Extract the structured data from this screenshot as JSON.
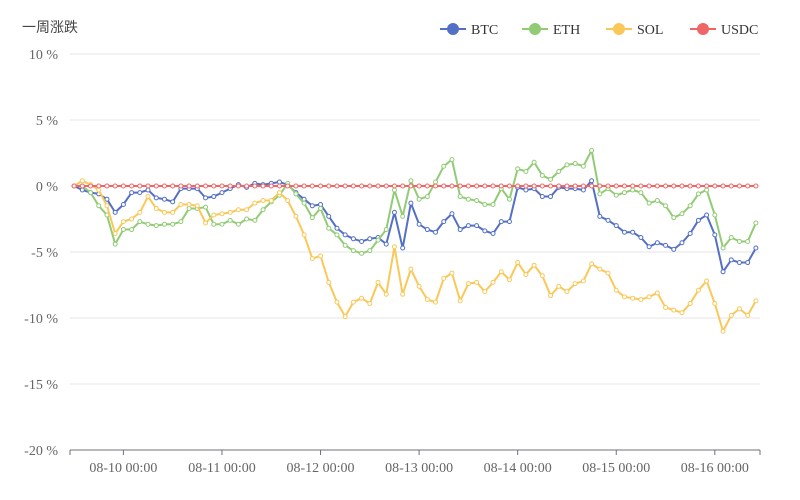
{
  "chart_data": {
    "type": "line",
    "title": "一周涨跌",
    "xlabel": "",
    "ylabel": "",
    "ylim": [
      -20,
      10
    ],
    "y_ticks": [
      10,
      5,
      0,
      -5,
      -10,
      -15,
      -20
    ],
    "y_tick_suffix": " %",
    "x_tick_labels": [
      "08-10 00:00",
      "08-11 00:00",
      "08-12 00:00",
      "08-13 00:00",
      "08-14 00:00",
      "08-15 00:00",
      "08-16 00:00"
    ],
    "x_tick_indices": [
      6.5,
      18.5,
      30.5,
      42.5,
      54.5,
      66.5,
      78.5
    ],
    "point_count": 84,
    "grid": true,
    "legend_position": "top-right",
    "series": [
      {
        "name": "BTC",
        "color": "#5470c6",
        "values": [
          0,
          -0.3,
          -0.5,
          -0.6,
          -1.0,
          -2.0,
          -1.4,
          -0.5,
          -0.5,
          -0.3,
          -0.9,
          -1.0,
          -1.2,
          -0.2,
          -0.2,
          -0.2,
          -0.9,
          -0.8,
          -0.5,
          -0.2,
          0.1,
          -0.1,
          0.2,
          0.1,
          0.2,
          0.3,
          0.1,
          -0.5,
          -1.0,
          -1.5,
          -1.4,
          -2.3,
          -3.2,
          -3.7,
          -4.0,
          -4.2,
          -4.0,
          -3.9,
          -4.4,
          -2.0,
          -4.7,
          -1.3,
          -2.9,
          -3.3,
          -3.5,
          -2.7,
          -2.1,
          -3.3,
          -3.0,
          -3.0,
          -3.4,
          -3.6,
          -2.7,
          -2.7,
          -0.1,
          -0.3,
          -0.2,
          -0.8,
          -0.8,
          -0.1,
          -0.2,
          -0.2,
          -0.3,
          0.4,
          -2.3,
          -2.6,
          -3.0,
          -3.5,
          -3.5,
          -3.9,
          -4.6,
          -4.3,
          -4.5,
          -4.8,
          -4.3,
          -3.6,
          -2.6,
          -2.2,
          -3.7,
          -6.5,
          -5.6,
          -5.8,
          -5.8,
          -4.7
        ]
      },
      {
        "name": "ETH",
        "color": "#91cc75",
        "values": [
          0,
          0,
          -0.5,
          -1.5,
          -2.2,
          -4.4,
          -3.3,
          -3.3,
          -2.7,
          -2.9,
          -3.0,
          -2.9,
          -2.9,
          -2.7,
          -1.7,
          -1.7,
          -1.6,
          -2.9,
          -2.9,
          -2.6,
          -2.9,
          -2.5,
          -2.6,
          -1.8,
          -1.2,
          -0.7,
          0.2,
          -0.6,
          -1.3,
          -2.4,
          -1.7,
          -3.2,
          -3.7,
          -4.5,
          -4.9,
          -5.1,
          -4.9,
          -4.1,
          -3.3,
          -0.3,
          -2.3,
          0.4,
          -1.0,
          -0.8,
          0.3,
          1.5,
          2.0,
          -0.8,
          -1.0,
          -1.1,
          -1.4,
          -1.4,
          -0.2,
          -1.0,
          1.3,
          1.1,
          1.8,
          0.8,
          0.5,
          1.1,
          1.6,
          1.7,
          1.5,
          2.7,
          -0.6,
          -0.2,
          -0.7,
          -0.5,
          -0.3,
          -0.5,
          -1.3,
          -1.1,
          -1.5,
          -2.4,
          -2.1,
          -1.5,
          -0.6,
          -0.3,
          -2.2,
          -4.7,
          -3.9,
          -4.2,
          -4.2,
          -2.8
        ]
      },
      {
        "name": "SOL",
        "color": "#fac858",
        "values": [
          0,
          0.4,
          0.1,
          -0.3,
          -1.5,
          -3.6,
          -2.7,
          -2.5,
          -2.0,
          -0.8,
          -1.7,
          -2.0,
          -2.0,
          -1.4,
          -1.4,
          -1.5,
          -2.8,
          -2.2,
          -2.1,
          -2.0,
          -1.8,
          -1.8,
          -1.3,
          -1.1,
          -1.1,
          -0.5,
          -1.1,
          -2.3,
          -3.7,
          -5.5,
          -5.3,
          -7.3,
          -8.8,
          -9.9,
          -8.8,
          -8.5,
          -8.9,
          -7.3,
          -8.2,
          -4.6,
          -8.2,
          -6.3,
          -7.6,
          -8.6,
          -8.8,
          -7.0,
          -6.6,
          -8.7,
          -7.4,
          -7.3,
          -8.0,
          -7.3,
          -6.5,
          -7.1,
          -5.8,
          -6.7,
          -6.0,
          -6.8,
          -8.3,
          -7.6,
          -8.0,
          -7.4,
          -7.2,
          -5.9,
          -6.3,
          -6.6,
          -7.9,
          -8.4,
          -8.5,
          -8.6,
          -8.4,
          -8.1,
          -9.2,
          -9.4,
          -9.6,
          -8.9,
          -7.9,
          -7.2,
          -8.9,
          -11.0,
          -9.8,
          -9.3,
          -9.8,
          -8.7
        ]
      },
      {
        "name": "USDC",
        "color": "#ee6666",
        "values": [
          0,
          0,
          0,
          0,
          0,
          0,
          0,
          0,
          0,
          0,
          0,
          0,
          0,
          0,
          0,
          0,
          0,
          0,
          0,
          0,
          0,
          0,
          0,
          0,
          0,
          0,
          0,
          0,
          0,
          0,
          0,
          0,
          0,
          0,
          0,
          0,
          0,
          0,
          0,
          0,
          0,
          0,
          0,
          0,
          0,
          0,
          0,
          0,
          0,
          0,
          0,
          0,
          0,
          0,
          0,
          0,
          0,
          0,
          0,
          0,
          0,
          0,
          0,
          0,
          0,
          0,
          0,
          0,
          0,
          0,
          0,
          0,
          0,
          0,
          0,
          0,
          0,
          0,
          0,
          0,
          0,
          0,
          0,
          0
        ]
      }
    ]
  }
}
